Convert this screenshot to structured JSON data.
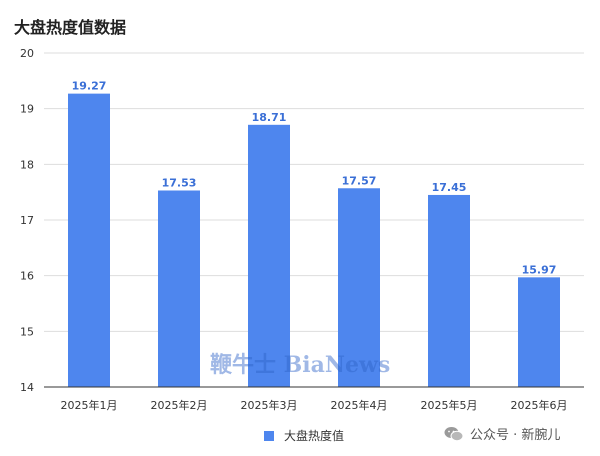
{
  "title": "大盘热度值数据",
  "watermark": "鞭牛士 BiaNews",
  "account": "公众号 · 新腕儿",
  "icons": {
    "account": "wechat-icon"
  },
  "colors": {
    "bar": "#4e86ee",
    "label": "#3a6fd6",
    "grid": "#dddddd",
    "axis": "#333333"
  },
  "chart_data": {
    "type": "bar",
    "title": "大盘热度值数据",
    "categories": [
      "2025年1月",
      "2025年2月",
      "2025年3月",
      "2025年4月",
      "2025年5月",
      "2025年6月"
    ],
    "series": [
      {
        "name": "大盘热度值",
        "values": [
          19.27,
          17.53,
          18.71,
          17.57,
          17.45,
          15.97
        ]
      }
    ],
    "data_labels": [
      "19.27",
      "17.53",
      "18.71",
      "17.57",
      "17.45",
      "15.97"
    ],
    "ylim": [
      14,
      20
    ],
    "yticks": [
      14,
      15,
      16,
      17,
      18,
      19,
      20
    ],
    "grid": true,
    "legend": "bottom-center"
  }
}
